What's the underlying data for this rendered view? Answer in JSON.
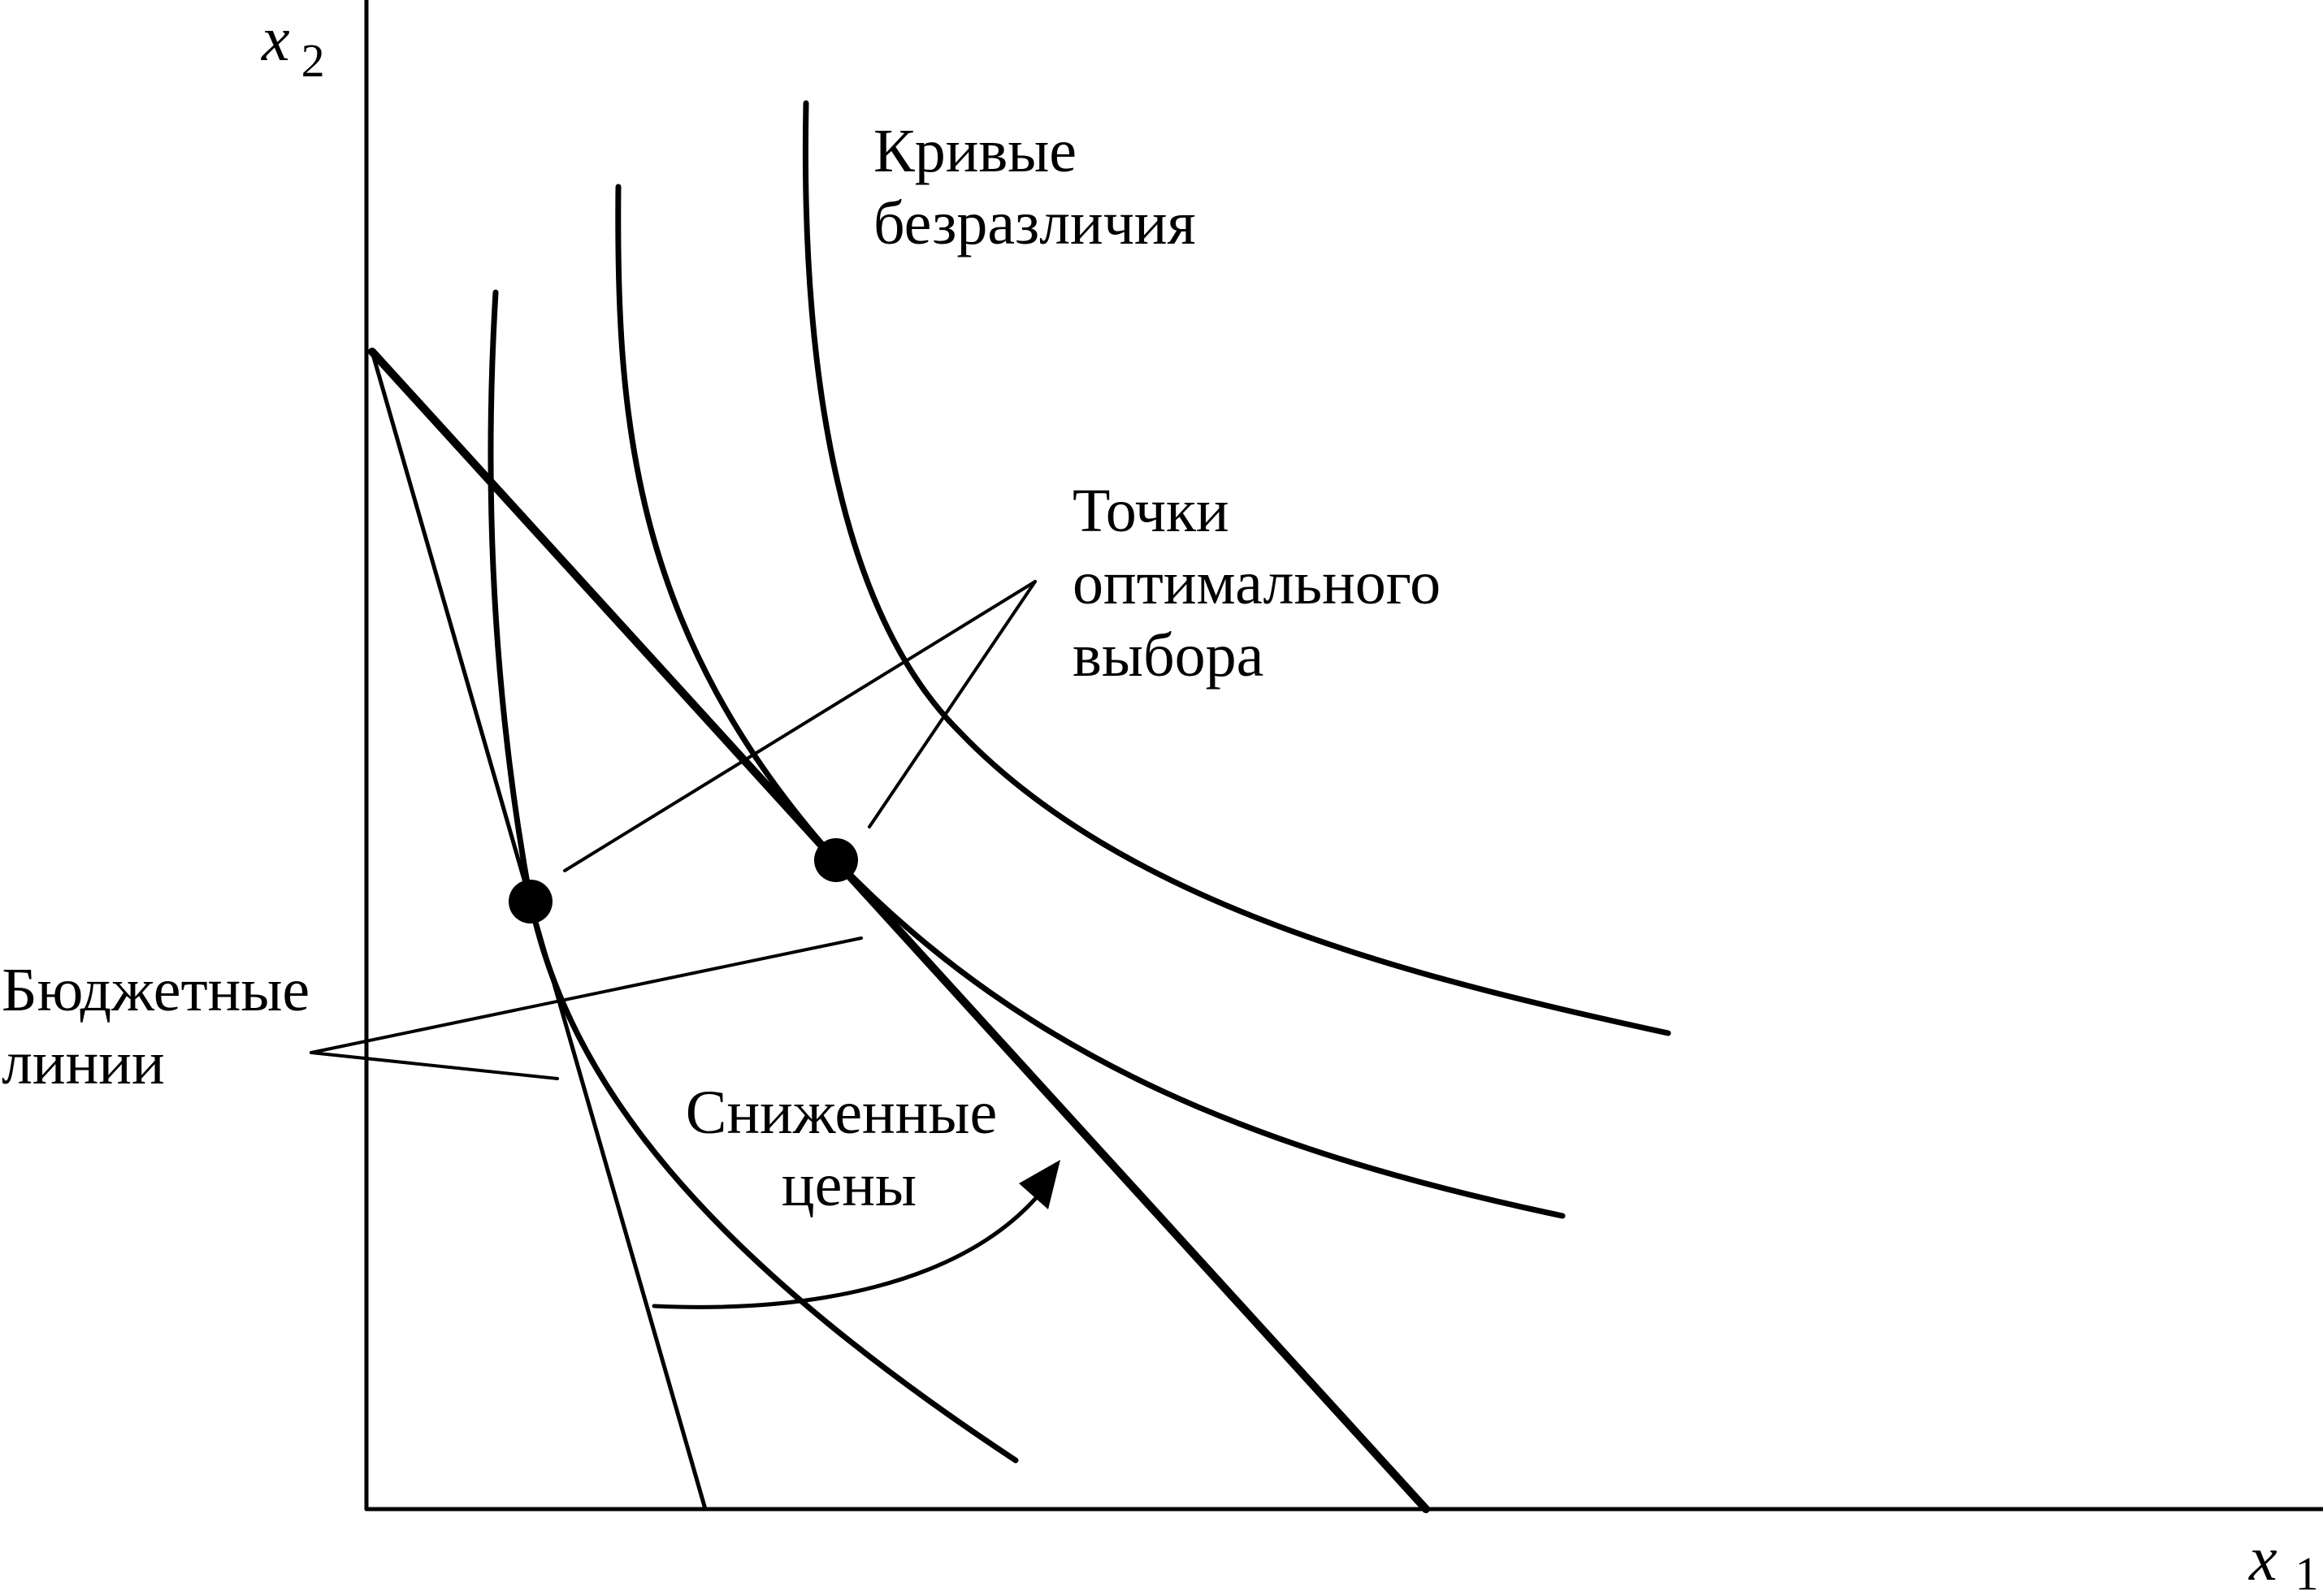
{
  "axes": {
    "x": {
      "var": "x",
      "sub": "1"
    },
    "y": {
      "var": "x",
      "sub": "2"
    }
  },
  "labels": {
    "indifference_curves": [
      "Кривые",
      "безразличия"
    ],
    "optimal_points": [
      "Точки",
      "оптимального",
      "выбора"
    ],
    "budget_lines": [
      "Бюджетные",
      "линии"
    ],
    "lower_prices": [
      "Сниженные",
      "цены"
    ]
  },
  "colors": {
    "ink": "#000000",
    "background": "#ffffff"
  }
}
